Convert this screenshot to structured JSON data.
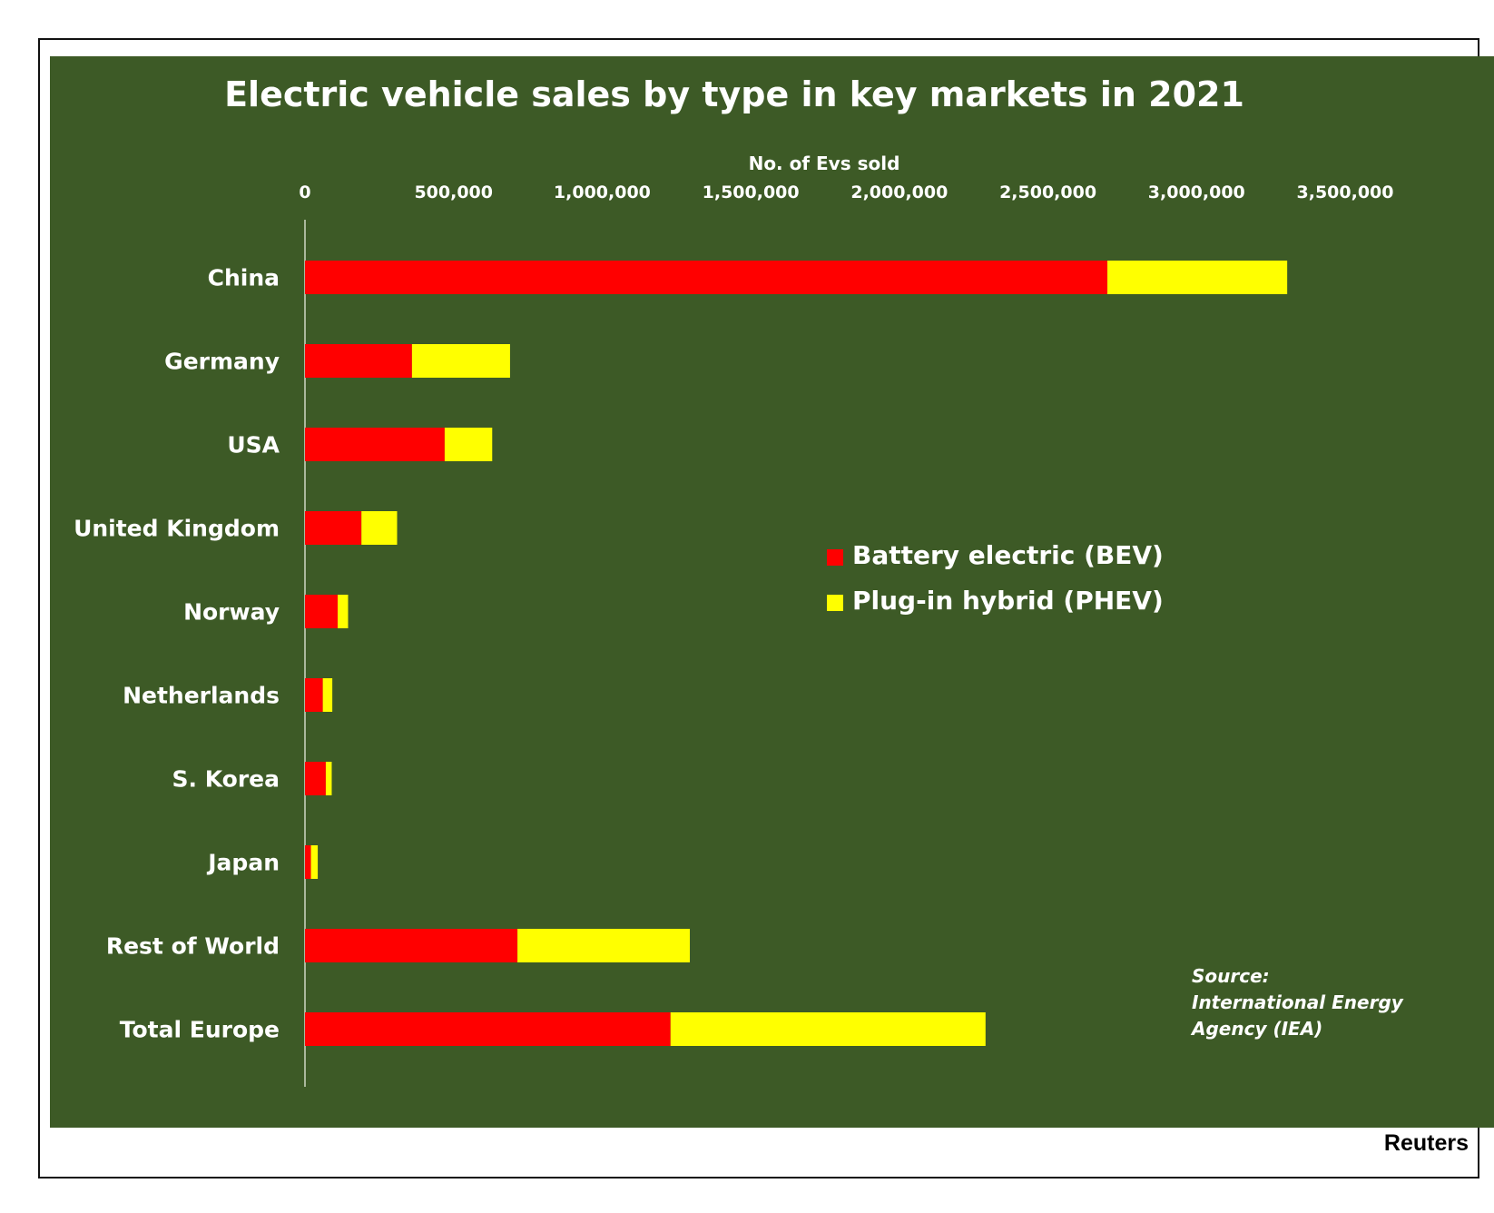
{
  "chart_data": {
    "type": "bar",
    "orientation": "horizontal",
    "stacked": true,
    "title": "Electric vehicle sales by type in key markets in 2021",
    "xlabel": "No. of Evs sold",
    "ylabel": "",
    "xlim": [
      0,
      3500000
    ],
    "x_ticks": [
      0,
      500000,
      1000000,
      1500000,
      2000000,
      2500000,
      3000000,
      3500000
    ],
    "x_tick_labels": [
      "0",
      "500,000",
      "1,000,000",
      "1,500,000",
      "2,000,000",
      "2,500,000",
      "3,000,000",
      "3,500,000"
    ],
    "x_axis_position": "top",
    "grid": false,
    "legend_position": "center-right",
    "categories": [
      "China",
      "Germany",
      "USA",
      "United Kingdom",
      "Norway",
      "Netherlands",
      "S. Korea",
      "Japan",
      "Rest of World",
      "Total Europe"
    ],
    "series": [
      {
        "name": "Battery electric (BEV)",
        "color": "#ff0000",
        "values": [
          2700000,
          360000,
          470000,
          190000,
          110000,
          60000,
          70000,
          20000,
          715000,
          1230000
        ]
      },
      {
        "name": "Plug-in hybrid (PHEV)",
        "color": "#ffff00",
        "values": [
          605000,
          330000,
          160000,
          120000,
          35000,
          32000,
          20000,
          23000,
          580000,
          1060000
        ]
      }
    ],
    "annotations": [
      "Source:",
      "International Energy",
      "Agency (IEA)"
    ]
  },
  "credit": "Reuters",
  "colors": {
    "background": "#3d5a26",
    "text": "#ffffff",
    "frame": "#111111"
  }
}
